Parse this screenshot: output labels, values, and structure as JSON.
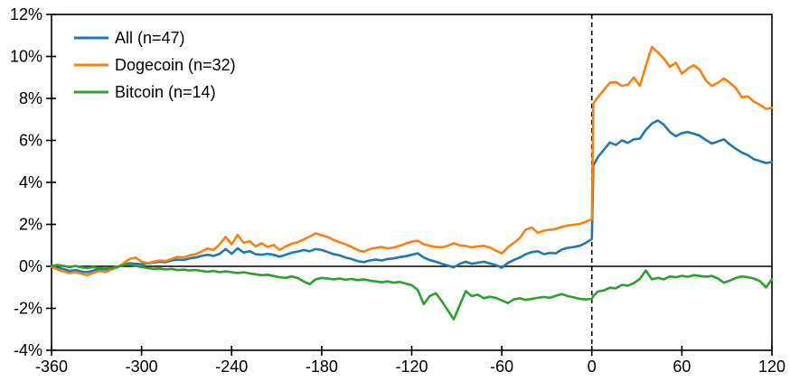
{
  "chart_data": {
    "type": "line",
    "title": "",
    "xlabel": "",
    "ylabel": "",
    "xlim": [
      -360,
      120
    ],
    "ylim": [
      -4,
      12
    ],
    "x_ticks": [
      -360,
      -300,
      -240,
      -180,
      -120,
      -60,
      0,
      60,
      120
    ],
    "y_ticks": [
      12,
      10,
      8,
      6,
      4,
      2,
      0,
      -2,
      -4
    ],
    "y_tick_suffix": "%",
    "grid": false,
    "zero_line": true,
    "event_line_x": 0,
    "legend_position": "top-left",
    "axis_color": "#000000",
    "background_color": "#ffffff",
    "x": [
      -360,
      -356,
      -352,
      -348,
      -344,
      -340,
      -336,
      -332,
      -328,
      -324,
      -320,
      -316,
      -312,
      -308,
      -304,
      -300,
      -296,
      -292,
      -288,
      -284,
      -280,
      -276,
      -272,
      -268,
      -264,
      -260,
      -256,
      -252,
      -248,
      -244,
      -240,
      -236,
      -232,
      -228,
      -224,
      -220,
      -216,
      -212,
      -208,
      -204,
      -200,
      -196,
      -192,
      -188,
      -184,
      -180,
      -176,
      -172,
      -168,
      -164,
      -160,
      -156,
      -152,
      -148,
      -144,
      -140,
      -136,
      -132,
      -128,
      -124,
      -120,
      -116,
      -112,
      -108,
      -104,
      -100,
      -96,
      -92,
      -88,
      -84,
      -80,
      -76,
      -72,
      -68,
      -64,
      -60,
      -56,
      -52,
      -48,
      -44,
      -40,
      -36,
      -32,
      -28,
      -24,
      -20,
      -16,
      -12,
      -8,
      -4,
      0,
      1,
      4,
      8,
      12,
      16,
      20,
      24,
      28,
      32,
      36,
      40,
      44,
      48,
      52,
      56,
      60,
      64,
      68,
      72,
      76,
      80,
      84,
      88,
      92,
      96,
      100,
      104,
      108,
      112,
      116,
      120
    ],
    "series": [
      {
        "name": "All (n=47)",
        "color": "#1f77b4",
        "values": [
          0.0,
          -0.08,
          -0.12,
          -0.22,
          -0.18,
          -0.25,
          -0.28,
          -0.2,
          -0.12,
          -0.15,
          -0.08,
          -0.02,
          0.08,
          0.15,
          0.12,
          0.1,
          0.14,
          0.18,
          0.22,
          0.2,
          0.28,
          0.32,
          0.3,
          0.38,
          0.42,
          0.5,
          0.55,
          0.5,
          0.6,
          0.82,
          0.6,
          0.86,
          0.66,
          0.72,
          0.58,
          0.55,
          0.6,
          0.55,
          0.46,
          0.55,
          0.65,
          0.7,
          0.78,
          0.72,
          0.82,
          0.78,
          0.68,
          0.58,
          0.52,
          0.42,
          0.35,
          0.25,
          0.2,
          0.28,
          0.32,
          0.28,
          0.35,
          0.38,
          0.44,
          0.48,
          0.55,
          0.62,
          0.42,
          0.3,
          0.22,
          0.12,
          0.04,
          -0.05,
          0.12,
          0.22,
          0.12,
          0.17,
          0.22,
          0.14,
          0.06,
          -0.07,
          0.16,
          0.3,
          0.42,
          0.58,
          0.68,
          0.72,
          0.58,
          0.64,
          0.62,
          0.8,
          0.88,
          0.92,
          0.98,
          1.12,
          1.3,
          4.8,
          5.2,
          5.55,
          5.9,
          5.78,
          6.0,
          5.88,
          6.05,
          6.08,
          6.5,
          6.8,
          6.95,
          6.75,
          6.4,
          6.2,
          6.35,
          6.4,
          6.32,
          6.22,
          6.02,
          5.85,
          5.95,
          6.05,
          5.8,
          5.6,
          5.42,
          5.3,
          5.1,
          5.02,
          4.92,
          4.97
        ]
      },
      {
        "name": "Dogecoin (n=32)",
        "color": "#ff7f0e",
        "values": [
          -0.02,
          -0.15,
          -0.25,
          -0.32,
          -0.28,
          -0.35,
          -0.42,
          -0.3,
          -0.22,
          -0.28,
          -0.15,
          -0.05,
          0.15,
          0.35,
          0.42,
          0.22,
          0.15,
          0.22,
          0.28,
          0.25,
          0.35,
          0.45,
          0.42,
          0.52,
          0.58,
          0.7,
          0.85,
          0.78,
          1.05,
          1.4,
          1.05,
          1.5,
          1.12,
          1.2,
          0.95,
          1.1,
          0.92,
          1.02,
          0.78,
          0.95,
          1.08,
          1.15,
          1.28,
          1.42,
          1.58,
          1.48,
          1.4,
          1.25,
          1.15,
          1.05,
          0.92,
          0.78,
          0.7,
          0.82,
          0.88,
          0.92,
          0.85,
          0.9,
          0.98,
          1.08,
          1.18,
          1.22,
          1.05,
          0.98,
          0.92,
          0.9,
          0.98,
          1.1,
          1.0,
          0.97,
          0.9,
          0.95,
          0.98,
          0.9,
          0.75,
          0.62,
          0.9,
          1.12,
          1.35,
          1.75,
          1.85,
          1.6,
          1.7,
          1.74,
          1.78,
          1.88,
          1.95,
          1.98,
          2.02,
          2.12,
          2.25,
          7.75,
          8.05,
          8.4,
          8.75,
          8.78,
          8.6,
          8.65,
          9.0,
          8.6,
          9.55,
          10.45,
          10.2,
          9.9,
          9.5,
          9.7,
          9.18,
          9.42,
          9.58,
          9.35,
          8.85,
          8.6,
          8.75,
          8.95,
          8.75,
          8.5,
          8.05,
          8.1,
          7.85,
          7.7,
          7.5,
          7.55
        ]
      },
      {
        "name": "Bitcoin (n=14)",
        "color": "#2ca02c",
        "values": [
          0.02,
          0.06,
          0.02,
          -0.04,
          0.02,
          -0.05,
          -0.08,
          -0.04,
          -0.1,
          -0.06,
          -0.08,
          -0.02,
          0.06,
          0.1,
          0.02,
          -0.04,
          -0.08,
          -0.12,
          -0.1,
          -0.15,
          -0.12,
          -0.18,
          -0.15,
          -0.2,
          -0.17,
          -0.22,
          -0.26,
          -0.22,
          -0.28,
          -0.24,
          -0.28,
          -0.32,
          -0.28,
          -0.34,
          -0.38,
          -0.42,
          -0.4,
          -0.46,
          -0.52,
          -0.55,
          -0.48,
          -0.55,
          -0.72,
          -0.85,
          -0.62,
          -0.55,
          -0.58,
          -0.62,
          -0.58,
          -0.64,
          -0.6,
          -0.66,
          -0.62,
          -0.68,
          -0.72,
          -0.76,
          -0.72,
          -0.78,
          -0.74,
          -0.82,
          -0.9,
          -1.12,
          -1.8,
          -1.42,
          -1.28,
          -1.65,
          -2.1,
          -2.52,
          -1.85,
          -1.18,
          -1.42,
          -1.35,
          -1.52,
          -1.45,
          -1.5,
          -1.62,
          -1.75,
          -1.58,
          -1.52,
          -1.6,
          -1.55,
          -1.5,
          -1.46,
          -1.5,
          -1.4,
          -1.32,
          -1.42,
          -1.48,
          -1.55,
          -1.58,
          -1.55,
          -1.42,
          -1.2,
          -1.15,
          -1.02,
          -1.05,
          -0.88,
          -0.92,
          -0.8,
          -0.6,
          -0.2,
          -0.62,
          -0.55,
          -0.62,
          -0.48,
          -0.52,
          -0.45,
          -0.5,
          -0.42,
          -0.46,
          -0.5,
          -0.46,
          -0.58,
          -0.78,
          -0.68,
          -0.55,
          -0.48,
          -0.52,
          -0.58,
          -0.7,
          -1.0,
          -0.62
        ]
      }
    ],
    "legend": [
      "All (n=47)",
      "Dogecoin (n=32)",
      "Bitcoin (n=14)"
    ]
  }
}
